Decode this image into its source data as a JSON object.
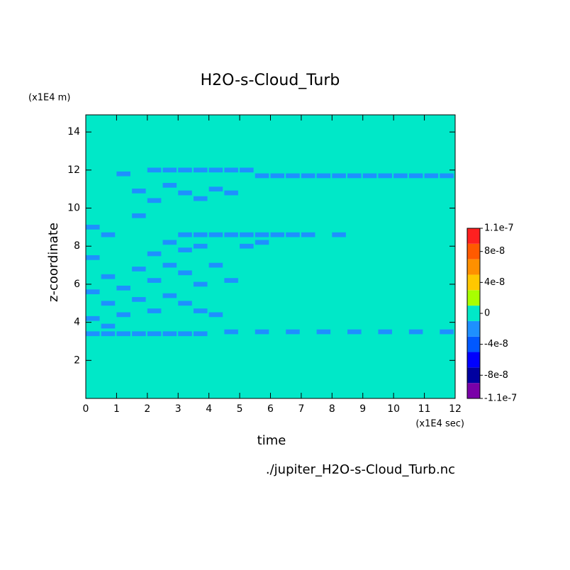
{
  "chart_data": {
    "type": "heatmap",
    "title": "H2O-s-Cloud_Turb",
    "y_unit": "(x1E4 m)",
    "x_unit": "(x1E4 sec)",
    "xlabel": "time",
    "ylabel": "z-coordinate",
    "source": "./jupiter_H2O-s-Cloud_Turb.nc",
    "xlim": [
      0,
      12
    ],
    "xticks": [
      0,
      1,
      2,
      3,
      4,
      5,
      6,
      7,
      8,
      9,
      10,
      11,
      12
    ],
    "ylim": [
      0,
      14.9
    ],
    "yticks": [
      2,
      4,
      6,
      8,
      10,
      12,
      14
    ],
    "colorbar": {
      "levels": [
        -1.1e-07,
        -9e-08,
        -7e-08,
        -5e-08,
        -3e-08,
        -1e-08,
        1e-08,
        3e-08,
        5e-08,
        7e-08,
        9e-08,
        1.1e-07
      ],
      "colors": [
        "#7a00a8",
        "#0000a0",
        "#0000ff",
        "#0058ff",
        "#1e90ff",
        "#00e8c8",
        "#a8ff00",
        "#ffc800",
        "#ff9000",
        "#ff5a00",
        "#ff2020",
        "#ffb0b0"
      ],
      "ticks": [
        -1.1e-07,
        -8e-08,
        -4e-08,
        0,
        4e-08,
        8e-08,
        1.1e-07
      ]
    },
    "field": {
      "background": 0,
      "x": [
        2,
        2.5,
        3,
        3.5,
        4,
        4.5,
        5,
        5.5,
        6,
        6.5,
        7,
        7.5,
        8,
        8.5,
        9,
        9.5,
        10,
        10.5,
        11,
        11.5,
        1.5,
        2.5,
        3,
        3.5,
        4,
        4.5,
        1,
        2,
        3,
        3.5,
        4,
        4.5,
        5,
        5.5,
        6,
        6.5,
        7,
        8,
        2.5,
        2,
        2.5,
        3,
        3.5,
        1.5,
        2,
        3,
        3.5,
        1,
        1.5,
        2.5,
        3,
        0.5,
        0.5,
        0,
        0,
        0.5,
        1,
        2,
        3.5,
        4,
        4.5,
        5,
        0,
        1.5,
        0,
        0.5,
        4,
        5.5,
        0,
        0.5,
        1,
        1.5,
        2,
        2.5,
        3,
        3.5,
        4.5,
        5.5,
        6.5,
        7.5,
        8.5,
        9.5,
        10.5,
        11.5
      ],
      "y": [
        12,
        12,
        12,
        12,
        12,
        12,
        12,
        11.7,
        11.7,
        11.7,
        11.7,
        11.7,
        11.7,
        11.7,
        11.7,
        11.7,
        11.7,
        11.7,
        11.7,
        11.7,
        10.9,
        11.2,
        10.8,
        10.5,
        11,
        10.8,
        11.8,
        10.4,
        8.6,
        8.6,
        8.6,
        8.6,
        8.6,
        8.6,
        8.6,
        8.6,
        8.6,
        8.6,
        8.2,
        7.6,
        7,
        7.8,
        8,
        6.8,
        6.2,
        6.6,
        6,
        5.8,
        5.2,
        5.4,
        5,
        5,
        6.4,
        5.6,
        7.4,
        8.6,
        4.4,
        4.6,
        4.6,
        7,
        6.2,
        8,
        9,
        9.6,
        4.2,
        3.8,
        4.4,
        8.2,
        3.4,
        3.4,
        3.4,
        3.4,
        3.4,
        3.4,
        3.4,
        3.4,
        3.5,
        3.5,
        3.5,
        3.5,
        3.5,
        3.5,
        3.5,
        3.5
      ],
      "values": [
        -2e-08,
        -2e-08,
        -2e-08,
        -2e-08,
        -2e-08,
        -2e-08,
        -2e-08,
        -2e-08,
        -2e-08,
        -2e-08,
        -2e-08,
        -2e-08,
        -2e-08,
        -2e-08,
        -2e-08,
        -2e-08,
        -2e-08,
        -2e-08,
        -2e-08,
        -2e-08,
        -2e-08,
        -2e-08,
        -2e-08,
        -2e-08,
        -2e-08,
        -2e-08,
        -2e-08,
        -2e-08,
        -2e-08,
        -2e-08,
        -2e-08,
        -2e-08,
        -2e-08,
        -2e-08,
        -2e-08,
        -2e-08,
        -2e-08,
        -2e-08,
        -2e-08,
        -2e-08,
        -2e-08,
        -2e-08,
        -2e-08,
        -2e-08,
        -2e-08,
        -2e-08,
        -2e-08,
        -2e-08,
        -2e-08,
        -2e-08,
        -2e-08,
        -2e-08,
        -2e-08,
        -2e-08,
        -2e-08,
        -2e-08,
        -2e-08,
        -2e-08,
        -2e-08,
        -2e-08,
        -2e-08,
        -2e-08,
        -2e-08,
        -2e-08,
        -2e-08,
        -2e-08,
        -2e-08,
        -2e-08,
        -2e-08,
        -2e-08,
        -2e-08,
        -2e-08,
        -2e-08,
        -2e-08,
        -2e-08,
        -2e-08,
        -2e-08,
        -2e-08,
        -2e-08,
        -2e-08,
        -2e-08,
        -2e-08,
        -2e-08,
        -2e-08
      ]
    }
  }
}
